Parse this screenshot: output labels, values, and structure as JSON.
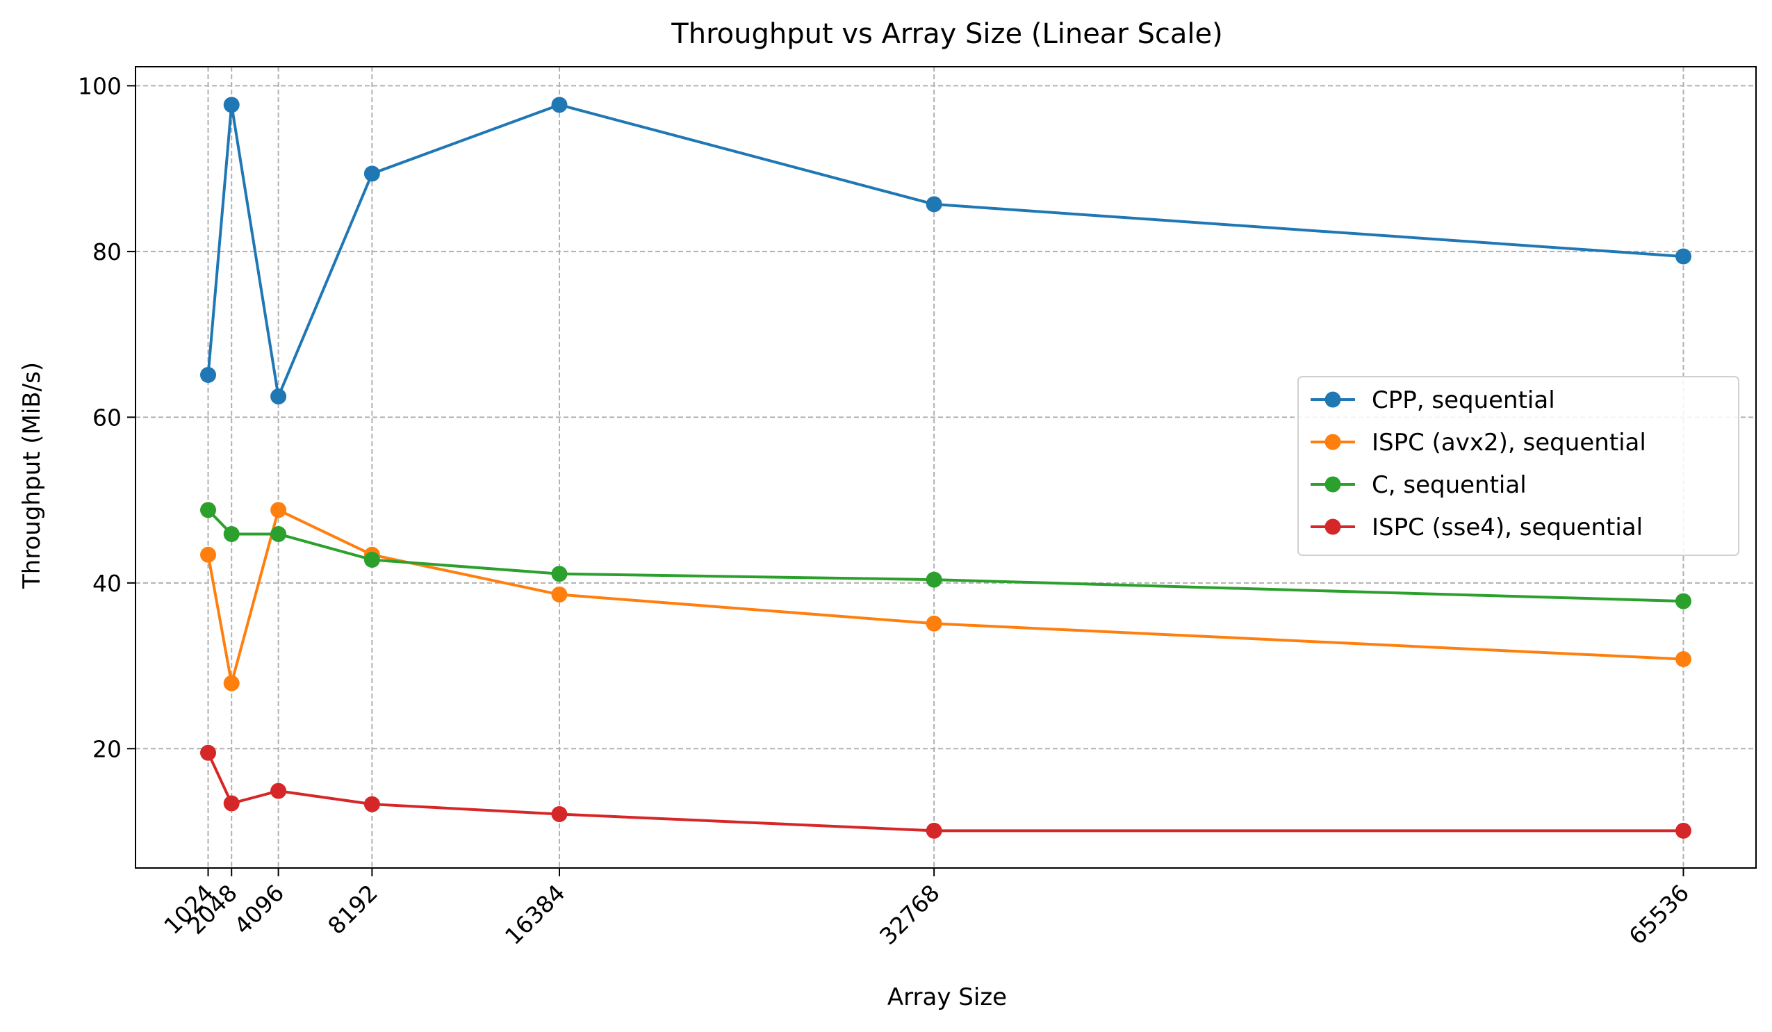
{
  "chart_data": {
    "type": "line",
    "title": "Throughput vs Array Size (Linear Scale)",
    "xlabel": "Array Size",
    "ylabel": "Throughput (MiB/s)",
    "x": [
      1024,
      2048,
      4096,
      8192,
      16384,
      32768,
      65536
    ],
    "x_tick_labels": [
      "1024",
      "2048",
      "4096",
      "8192",
      "16384",
      "32768",
      "65536"
    ],
    "y_ticks": [
      20,
      40,
      60,
      80,
      100
    ],
    "y_tick_labels": [
      "20",
      "40",
      "60",
      "80",
      "100"
    ],
    "xlim": [
      -2152,
      68712
    ],
    "ylim": [
      5.6,
      102.3
    ],
    "grid": true,
    "legend_position": "center-right",
    "series": [
      {
        "name": "CPP, sequential",
        "color": "#1f77b4",
        "values": [
          65.1,
          97.7,
          62.5,
          89.4,
          97.7,
          85.7,
          79.4
        ]
      },
      {
        "name": "ISPC (avx2), sequential",
        "color": "#ff7f0e",
        "values": [
          43.4,
          27.9,
          48.8,
          43.4,
          38.6,
          35.1,
          30.8
        ]
      },
      {
        "name": "C, sequential",
        "color": "#2ca02c",
        "values": [
          48.8,
          45.9,
          45.9,
          42.8,
          41.1,
          40.4,
          37.8
        ]
      },
      {
        "name": "ISPC (sse4), sequential",
        "color": "#d62728",
        "values": [
          19.5,
          13.4,
          14.9,
          13.3,
          12.1,
          10.1,
          10.1
        ]
      }
    ]
  }
}
